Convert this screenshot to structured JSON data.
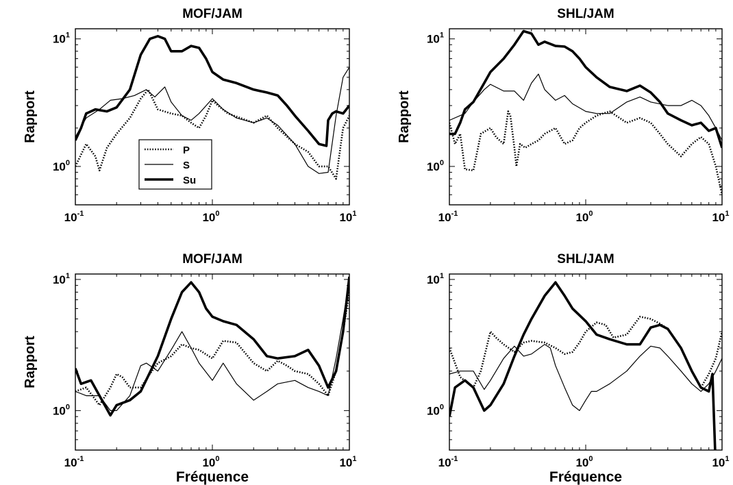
{
  "figure": {
    "xlabel": "Fréquence",
    "ylabel": "Rapport",
    "legend": {
      "position": "lower-left",
      "entries": [
        "P",
        "S",
        "Su"
      ]
    }
  },
  "styles": {
    "P": {
      "color": "#000000",
      "dash": "dotted",
      "weight": "medium"
    },
    "S": {
      "color": "#000000",
      "dash": "solid",
      "weight": "thin"
    },
    "Su": {
      "color": "#000000",
      "dash": "solid",
      "weight": "thick"
    }
  },
  "chart_data": [
    {
      "type": "line",
      "title": "MOF/JAM",
      "xscale": "log",
      "yscale": "log",
      "xlim": [
        0.1,
        10
      ],
      "ylim": [
        0.5,
        12
      ],
      "grid": false,
      "xticks": [
        {
          "base": "10",
          "exp": "-1"
        },
        {
          "base": "10",
          "exp": "0"
        },
        {
          "base": "10",
          "exp": "1"
        }
      ],
      "yticks": [
        {
          "base": "10",
          "exp": "0"
        },
        {
          "base": "10",
          "exp": "1"
        }
      ],
      "show_ylabel": true,
      "show_xlabel": false,
      "show_legend": true,
      "series": [
        {
          "name": "P",
          "x": [
            0.1,
            0.12,
            0.14,
            0.15,
            0.17,
            0.2,
            0.25,
            0.3,
            0.34,
            0.4,
            0.5,
            0.6,
            0.7,
            0.8,
            0.9,
            1.0,
            1.1,
            1.3,
            1.6,
            2.0,
            2.5,
            3.0,
            4.0,
            5.0,
            6.0,
            7.0,
            8.0,
            9.0,
            10
          ],
          "y": [
            1.0,
            1.5,
            1.2,
            0.93,
            1.4,
            1.8,
            2.4,
            3.4,
            4.0,
            2.8,
            2.6,
            2.5,
            2.2,
            2.0,
            2.5,
            3.3,
            3.0,
            2.6,
            2.4,
            2.2,
            2.5,
            2.0,
            1.5,
            1.3,
            1.0,
            1.0,
            0.8,
            2.0,
            2.5
          ]
        },
        {
          "name": "S",
          "x": [
            0.1,
            0.12,
            0.15,
            0.18,
            0.22,
            0.27,
            0.33,
            0.38,
            0.45,
            0.5,
            0.6,
            0.7,
            0.8,
            1.0,
            1.2,
            1.5,
            2.0,
            2.5,
            3.0,
            4.0,
            5.0,
            6.0,
            7.0,
            8.0,
            9.0,
            10
          ],
          "y": [
            1.7,
            2.4,
            2.8,
            3.3,
            3.4,
            3.6,
            4.0,
            3.5,
            4.2,
            3.2,
            2.5,
            2.3,
            2.6,
            3.4,
            2.8,
            2.4,
            2.2,
            2.4,
            2.1,
            1.5,
            1.0,
            0.88,
            0.9,
            2.5,
            5.0,
            6.0
          ]
        },
        {
          "name": "Su",
          "x": [
            0.1,
            0.11,
            0.12,
            0.14,
            0.17,
            0.2,
            0.25,
            0.3,
            0.35,
            0.4,
            0.45,
            0.5,
            0.6,
            0.7,
            0.8,
            0.9,
            1.0,
            1.2,
            1.5,
            2.0,
            2.5,
            3.0,
            3.5,
            4.0,
            5.0,
            6.0,
            6.8,
            7.0,
            7.5,
            8.0,
            9.0,
            10
          ],
          "y": [
            1.6,
            2.0,
            2.6,
            2.8,
            2.7,
            2.9,
            4.0,
            7.5,
            10.0,
            10.5,
            10.0,
            8.0,
            8.0,
            8.8,
            8.5,
            7.0,
            5.5,
            4.8,
            4.5,
            4.0,
            3.8,
            3.6,
            3.0,
            2.5,
            1.9,
            1.5,
            1.45,
            2.3,
            2.6,
            2.7,
            2.6,
            3.0
          ]
        }
      ]
    },
    {
      "type": "line",
      "title": "SHL/JAM",
      "xscale": "log",
      "yscale": "log",
      "xlim": [
        0.1,
        10
      ],
      "ylim": [
        0.5,
        12
      ],
      "grid": false,
      "xticks": [
        {
          "base": "10",
          "exp": "-1"
        },
        {
          "base": "10",
          "exp": "0"
        },
        {
          "base": "10",
          "exp": "1"
        }
      ],
      "yticks": [
        {
          "base": "10",
          "exp": "0"
        },
        {
          "base": "10",
          "exp": "1"
        }
      ],
      "show_ylabel": true,
      "show_xlabel": false,
      "show_legend": false,
      "series": [
        {
          "name": "P",
          "x": [
            0.1,
            0.11,
            0.12,
            0.13,
            0.15,
            0.17,
            0.2,
            0.22,
            0.25,
            0.27,
            0.28,
            0.3,
            0.31,
            0.33,
            0.36,
            0.4,
            0.45,
            0.5,
            0.6,
            0.7,
            0.8,
            0.9,
            1.0,
            1.2,
            1.5,
            2.0,
            2.5,
            3.0,
            3.5,
            4.0,
            5.0,
            6.0,
            7.0,
            8.0,
            9.0,
            10
          ],
          "y": [
            2.2,
            1.5,
            1.8,
            0.95,
            0.93,
            1.8,
            2.0,
            1.7,
            1.5,
            2.7,
            2.5,
            1.4,
            1.0,
            1.5,
            1.4,
            1.5,
            1.6,
            1.8,
            2.0,
            1.5,
            1.6,
            2.0,
            2.2,
            2.5,
            2.7,
            2.2,
            2.4,
            2.2,
            1.8,
            1.5,
            1.2,
            1.5,
            1.7,
            1.5,
            1.0,
            0.6
          ]
        },
        {
          "name": "S",
          "x": [
            0.1,
            0.13,
            0.15,
            0.18,
            0.2,
            0.25,
            0.3,
            0.35,
            0.4,
            0.45,
            0.5,
            0.6,
            0.7,
            0.8,
            1.0,
            1.2,
            1.5,
            2.0,
            2.5,
            3.0,
            4.0,
            5.0,
            6.0,
            7.0,
            8.0,
            9.0,
            10
          ],
          "y": [
            2.3,
            2.6,
            3.2,
            4.0,
            4.4,
            3.9,
            3.9,
            3.3,
            4.5,
            5.3,
            4.0,
            3.3,
            3.6,
            3.1,
            2.7,
            2.6,
            2.6,
            3.2,
            3.5,
            3.2,
            3.0,
            3.0,
            3.3,
            3.0,
            2.5,
            2.0,
            1.6
          ]
        },
        {
          "name": "Su",
          "x": [
            0.1,
            0.11,
            0.12,
            0.13,
            0.15,
            0.18,
            0.2,
            0.25,
            0.3,
            0.35,
            0.4,
            0.45,
            0.5,
            0.6,
            0.7,
            0.8,
            0.9,
            1.0,
            1.2,
            1.5,
            2.0,
            2.5,
            3.0,
            3.5,
            4.0,
            5.0,
            6.0,
            7.0,
            8.0,
            9.0,
            10
          ],
          "y": [
            1.8,
            1.8,
            2.2,
            2.8,
            3.2,
            4.5,
            5.5,
            7.0,
            9.0,
            11.5,
            11.0,
            9.0,
            9.5,
            8.8,
            8.7,
            8.0,
            7.0,
            6.0,
            5.0,
            4.2,
            3.9,
            4.3,
            3.8,
            3.2,
            2.6,
            2.3,
            2.1,
            2.2,
            1.9,
            2.0,
            1.4
          ]
        }
      ]
    },
    {
      "type": "line",
      "title": "MOF/JAM",
      "xscale": "log",
      "yscale": "log",
      "xlim": [
        0.1,
        10
      ],
      "ylim": [
        0.5,
        11
      ],
      "grid": false,
      "xticks": [
        {
          "base": "10",
          "exp": "-1"
        },
        {
          "base": "10",
          "exp": "0"
        },
        {
          "base": "10",
          "exp": "1"
        }
      ],
      "yticks": [
        {
          "base": "10",
          "exp": "0"
        },
        {
          "base": "10",
          "exp": "1"
        }
      ],
      "show_ylabel": true,
      "show_xlabel": true,
      "show_legend": false,
      "series": [
        {
          "name": "P",
          "x": [
            0.1,
            0.12,
            0.15,
            0.18,
            0.2,
            0.22,
            0.25,
            0.3,
            0.35,
            0.4,
            0.5,
            0.6,
            0.7,
            0.8,
            1.0,
            1.2,
            1.5,
            2.0,
            2.5,
            3.0,
            3.5,
            4.0,
            5.0,
            6.0,
            7.0,
            8.0,
            9.0,
            10
          ],
          "y": [
            1.4,
            1.5,
            1.1,
            1.5,
            1.9,
            1.8,
            1.5,
            1.5,
            1.9,
            2.3,
            2.6,
            3.2,
            3.0,
            2.9,
            2.5,
            3.4,
            3.3,
            2.3,
            2.0,
            2.4,
            2.2,
            2.0,
            1.9,
            1.6,
            1.3,
            2.0,
            4.0,
            8.0
          ]
        },
        {
          "name": "S",
          "x": [
            0.1,
            0.12,
            0.15,
            0.18,
            0.2,
            0.25,
            0.3,
            0.33,
            0.4,
            0.5,
            0.6,
            0.7,
            0.8,
            1.0,
            1.2,
            1.5,
            2.0,
            2.5,
            3.0,
            4.0,
            5.0,
            6.0,
            7.0,
            8.0,
            9.0,
            10
          ],
          "y": [
            1.4,
            1.3,
            1.3,
            1.0,
            1.0,
            1.3,
            2.2,
            2.3,
            2.0,
            2.9,
            4.0,
            3.0,
            2.3,
            1.7,
            2.3,
            1.6,
            1.2,
            1.4,
            1.6,
            1.7,
            1.5,
            1.4,
            1.3,
            2.5,
            5.0,
            10.0
          ]
        },
        {
          "name": "Su",
          "x": [
            0.1,
            0.11,
            0.13,
            0.15,
            0.18,
            0.2,
            0.25,
            0.3,
            0.4,
            0.5,
            0.6,
            0.7,
            0.8,
            0.9,
            1.0,
            1.2,
            1.5,
            2.0,
            2.5,
            3.0,
            4.0,
            5.0,
            6.0,
            7.0,
            8.0,
            9.0,
            10
          ],
          "y": [
            2.1,
            1.6,
            1.7,
            1.3,
            0.92,
            1.1,
            1.2,
            1.4,
            2.6,
            5.0,
            8.0,
            9.5,
            8.0,
            6.0,
            5.2,
            4.8,
            4.5,
            3.5,
            2.6,
            2.5,
            2.6,
            2.9,
            2.2,
            1.5,
            2.0,
            4.0,
            10.5
          ]
        }
      ]
    },
    {
      "type": "line",
      "title": "SHL/JAM",
      "xscale": "log",
      "yscale": "log",
      "xlim": [
        0.1,
        10
      ],
      "ylim": [
        0.5,
        11
      ],
      "grid": false,
      "xticks": [
        {
          "base": "10",
          "exp": "-1"
        },
        {
          "base": "10",
          "exp": "0"
        },
        {
          "base": "10",
          "exp": "1"
        }
      ],
      "yticks": [
        {
          "base": "10",
          "exp": "0"
        },
        {
          "base": "10",
          "exp": "1"
        }
      ],
      "show_ylabel": false,
      "show_xlabel": true,
      "show_legend": false,
      "series": [
        {
          "name": "P",
          "x": [
            0.1,
            0.12,
            0.15,
            0.17,
            0.2,
            0.22,
            0.25,
            0.3,
            0.35,
            0.4,
            0.5,
            0.6,
            0.7,
            0.8,
            0.9,
            1.0,
            1.2,
            1.4,
            1.6,
            2.0,
            2.5,
            3.0,
            3.5,
            4.0,
            5.0,
            6.0,
            7.0,
            8.0,
            9.0,
            10
          ],
          "y": [
            3.0,
            1.8,
            1.5,
            2.0,
            4.0,
            3.6,
            3.2,
            2.8,
            3.3,
            3.4,
            3.3,
            3.0,
            2.7,
            2.8,
            3.3,
            4.0,
            4.7,
            4.5,
            3.6,
            3.8,
            5.2,
            5.0,
            4.6,
            4.2,
            3.0,
            2.0,
            1.5,
            1.9,
            2.5,
            4.0
          ]
        },
        {
          "name": "S",
          "x": [
            0.1,
            0.12,
            0.15,
            0.18,
            0.2,
            0.25,
            0.3,
            0.35,
            0.4,
            0.5,
            0.55,
            0.6,
            0.7,
            0.8,
            0.9,
            1.0,
            1.1,
            1.2,
            1.5,
            2.0,
            2.5,
            3.0,
            3.5,
            4.0,
            5.0,
            6.0,
            7.0,
            8.0,
            9.0,
            10
          ],
          "y": [
            1.9,
            2.0,
            2.0,
            1.45,
            1.7,
            2.5,
            3.1,
            2.6,
            2.7,
            3.2,
            3.0,
            2.2,
            1.5,
            1.1,
            1.0,
            1.2,
            1.4,
            1.4,
            1.6,
            2.0,
            2.6,
            3.1,
            3.0,
            2.6,
            2.0,
            1.6,
            1.4,
            1.6,
            2.0,
            2.5
          ]
        },
        {
          "name": "Su",
          "x": [
            0.1,
            0.11,
            0.13,
            0.15,
            0.18,
            0.2,
            0.25,
            0.3,
            0.35,
            0.4,
            0.5,
            0.6,
            0.7,
            0.8,
            1.0,
            1.2,
            1.5,
            2.0,
            2.5,
            3.0,
            3.5,
            4.0,
            5.0,
            6.0,
            7.0,
            8.0,
            8.5,
            9.0
          ],
          "y": [
            0.9,
            1.5,
            1.7,
            1.5,
            1.0,
            1.1,
            1.6,
            2.6,
            3.8,
            5.0,
            7.5,
            9.5,
            7.5,
            6.0,
            4.8,
            3.8,
            3.5,
            3.2,
            3.2,
            4.3,
            4.5,
            4.2,
            3.0,
            2.0,
            1.5,
            1.4,
            1.9,
            0.35
          ]
        }
      ]
    }
  ]
}
